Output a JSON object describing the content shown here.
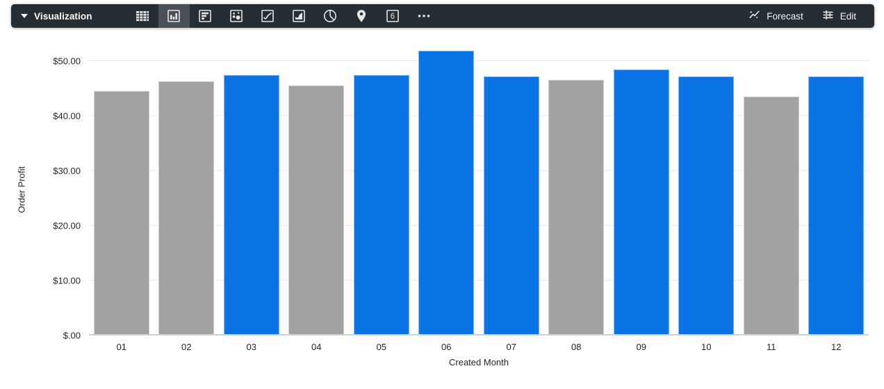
{
  "toolbar": {
    "title": "Visualization",
    "forecast_label": "Forecast",
    "edit_label": "Edit",
    "single_value_icon_text": "6",
    "icons": [
      "table",
      "column-chart-selected",
      "horizontal-bar-chart",
      "scatter-chart",
      "line-chart",
      "area-chart",
      "pie-chart",
      "map-pin",
      "single-value",
      "more"
    ],
    "colors": {
      "toolbar_bg": "#262d33",
      "selected_slot_bg": "#4a5056",
      "icon": "#e3e6e8"
    }
  },
  "chart_data": {
    "type": "bar",
    "title": "",
    "xlabel": "Created Month",
    "ylabel": "Order Profit",
    "categories": [
      "01",
      "02",
      "03",
      "04",
      "05",
      "06",
      "07",
      "08",
      "09",
      "10",
      "11",
      "12"
    ],
    "values": [
      44.6,
      46.3,
      47.5,
      45.6,
      47.5,
      51.9,
      47.2,
      46.6,
      48.5,
      47.2,
      43.5,
      47.2
    ],
    "bar_colors": [
      "gray",
      "gray",
      "blue",
      "gray",
      "blue",
      "blue",
      "blue",
      "gray",
      "blue",
      "blue",
      "gray",
      "blue"
    ],
    "palette": {
      "blue": "#0a73e6",
      "gray": "#a2a2a2"
    },
    "yticks": [
      {
        "value": 0,
        "label": "$.00"
      },
      {
        "value": 10,
        "label": "$10.00"
      },
      {
        "value": 20,
        "label": "$20.00"
      },
      {
        "value": 30,
        "label": "$30.00"
      },
      {
        "value": 40,
        "label": "$40.00"
      },
      {
        "value": 50,
        "label": "$50.00"
      }
    ],
    "ylim": [
      0,
      52.8
    ],
    "grid": true,
    "legend": "none",
    "grid_color": "#ececec",
    "axis_line_color": "#cbd3e1"
  }
}
